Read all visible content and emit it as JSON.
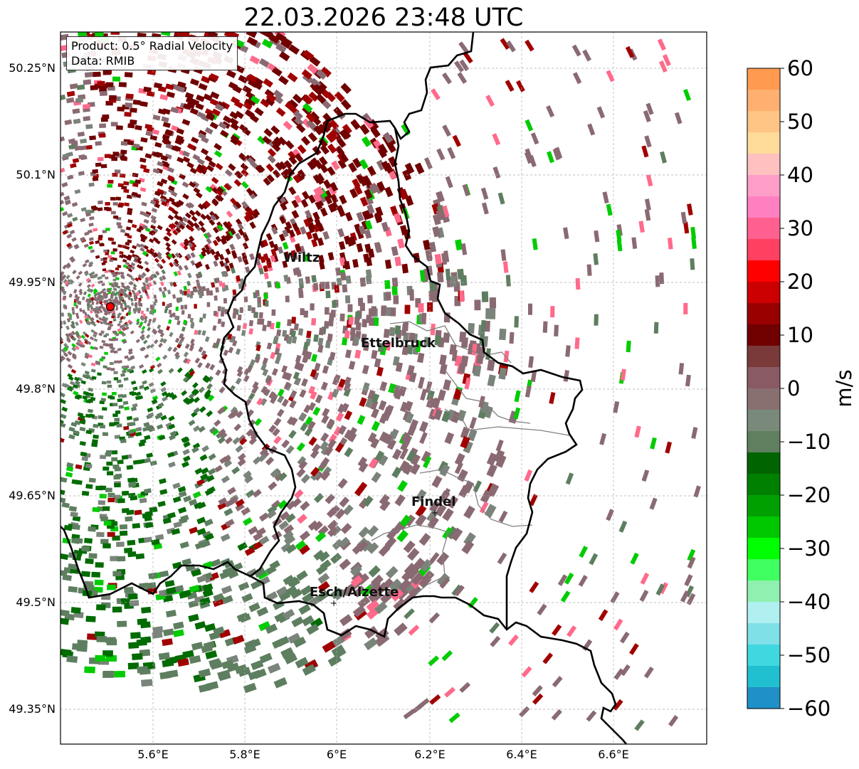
{
  "title": "22.03.2026 23:48 UTC",
  "info_box": {
    "product": "Product: 0.5° Radial Velocity",
    "data": "Data: RMIB"
  },
  "axes": {
    "lat_ticks": [
      "50.25°N",
      "50.1°N",
      "49.95°N",
      "49.8°N",
      "49.65°N",
      "49.5°N",
      "49.35°N"
    ],
    "lon_ticks": [
      "5.6°E",
      "5.8°E",
      "6°E",
      "6.2°E",
      "6.4°E",
      "6.6°E"
    ],
    "grid": true
  },
  "cities": [
    {
      "name": "Wiltz"
    },
    {
      "name": "Ettelbruck"
    },
    {
      "name": "Findel"
    },
    {
      "name": "Esch/Alzette"
    }
  ],
  "radar_site": {
    "color": "#ff0000"
  },
  "colorbar": {
    "unit": "m/s",
    "ticks": [
      "60",
      "50",
      "40",
      "30",
      "20",
      "10",
      "0",
      "−10",
      "−20",
      "−30",
      "−40",
      "−50",
      "−60"
    ],
    "min": -60,
    "max": 60,
    "colors": [
      "#ff9a50",
      "#ffb070",
      "#ffc585",
      "#ffdb9a",
      "#ffc0c0",
      "#ff9ec8",
      "#ff80c0",
      "#ff6090",
      "#ff4060",
      "#ff0000",
      "#cc0000",
      "#990000",
      "#700000",
      "#7a3a3a",
      "#8a5a64",
      "#887070",
      "#7a8a7a",
      "#5f7f5f",
      "#006400",
      "#008000",
      "#00a000",
      "#00c800",
      "#00ff00",
      "#40ff60",
      "#90f0b0",
      "#b0f0f0",
      "#80e0e8",
      "#40d8e0",
      "#20c0d0",
      "#2090c8"
    ]
  },
  "colors": {
    "outgoing_strong": "#700000",
    "outgoing_mid": "#a00000",
    "neutral_pos": "#8a6a72",
    "neutral": "#7a847a",
    "neutral_neg": "#5e7e60",
    "incoming": "#006b00",
    "incoming_bright": "#00cc00",
    "pink": "#ff6a8a",
    "cyan": "#40d8e0"
  }
}
